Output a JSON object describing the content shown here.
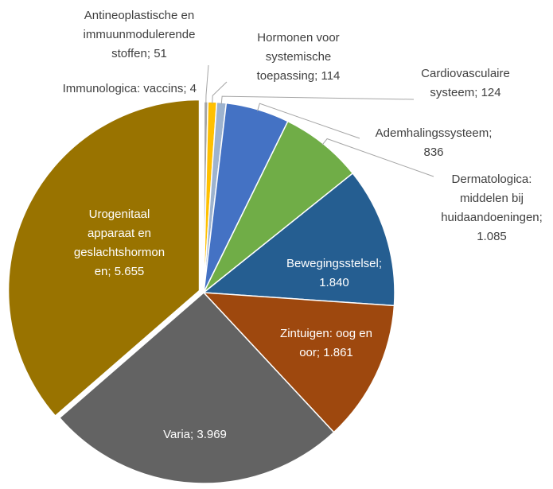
{
  "chart_data": {
    "type": "pie",
    "values": [
      4,
      51,
      114,
      124,
      836,
      1085,
      1840,
      1861,
      3969,
      5655
    ],
    "value_labels": [
      [
        "Immunologica: vaccins; 4"
      ],
      [
        "Antineoplastische en",
        "immuunmodulerende",
        "stoffen; 51"
      ],
      [
        "Hormonen voor",
        "systemische",
        "toepassing; 114"
      ],
      [
        "Cardiovasculaire",
        "systeem; 124"
      ],
      [
        "Ademhalingssysteem;",
        "836"
      ],
      [
        "Dermatologica:",
        "middelen bij",
        "huidaandoeningen;",
        "1.085"
      ],
      [
        "Bewegingsstelsel;",
        "1.840"
      ],
      [
        "Zintuigen: oog en",
        "oor; 1.861"
      ],
      [
        "Varia; 3.969"
      ],
      [
        "Urogenitaal",
        "apparaat en",
        "geslachtshormon",
        "en; 5.655"
      ]
    ],
    "colors": [
      "#e8643a",
      "#a5a5a5",
      "#ffc000",
      "#9db3cf",
      "#4472c4",
      "#70ad47",
      "#255e91",
      "#9e480e",
      "#636363",
      "#997300"
    ]
  }
}
